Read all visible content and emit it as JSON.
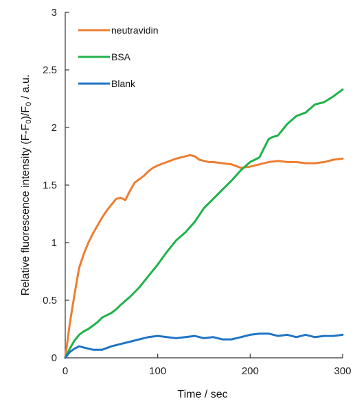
{
  "chart_data": {
    "type": "line",
    "title": "",
    "xlabel": "Time / sec",
    "ylabel_parts": {
      "main": "Relative fluorescence intensity (F-F",
      "sub1": "0",
      "mid": ")/F",
      "sub2": "0",
      "end": " / a.u."
    },
    "xlim": [
      0,
      300
    ],
    "ylim": [
      0,
      3
    ],
    "x_ticks": [
      0,
      100,
      200,
      300
    ],
    "y_ticks": [
      0,
      0.5,
      1,
      1.5,
      2,
      2.5,
      3
    ],
    "x_tick_labels": [
      "0",
      "100",
      "200",
      "300"
    ],
    "y_tick_labels": [
      "0",
      "0.5",
      "1",
      "1.5",
      "2",
      "2.5",
      "3"
    ],
    "grid": false,
    "legend_position": "top-left",
    "series": [
      {
        "name": "neutravidin",
        "color": "#EE7D31",
        "x": [
          0,
          5,
          10,
          15,
          20,
          25,
          30,
          35,
          40,
          45,
          50,
          55,
          60,
          65,
          70,
          75,
          80,
          85,
          90,
          95,
          100,
          110,
          120,
          130,
          135,
          140,
          145,
          150,
          155,
          160,
          170,
          180,
          190,
          200,
          210,
          220,
          230,
          240,
          250,
          260,
          270,
          280,
          290,
          300
        ],
        "y": [
          0,
          0.3,
          0.55,
          0.78,
          0.9,
          1.0,
          1.08,
          1.15,
          1.22,
          1.28,
          1.33,
          1.38,
          1.39,
          1.37,
          1.45,
          1.52,
          1.55,
          1.58,
          1.62,
          1.65,
          1.67,
          1.7,
          1.73,
          1.75,
          1.76,
          1.75,
          1.72,
          1.71,
          1.7,
          1.7,
          1.69,
          1.68,
          1.65,
          1.66,
          1.68,
          1.7,
          1.71,
          1.7,
          1.7,
          1.69,
          1.69,
          1.7,
          1.72,
          1.73
        ]
      },
      {
        "name": "BSA",
        "color": "#1FB24A",
        "x": [
          0,
          5,
          10,
          15,
          20,
          25,
          30,
          35,
          40,
          45,
          50,
          55,
          60,
          70,
          80,
          90,
          100,
          110,
          120,
          130,
          140,
          150,
          160,
          170,
          180,
          190,
          200,
          205,
          210,
          215,
          220,
          225,
          230,
          240,
          250,
          260,
          270,
          280,
          290,
          300
        ],
        "y": [
          0,
          0.08,
          0.15,
          0.2,
          0.23,
          0.25,
          0.28,
          0.31,
          0.35,
          0.37,
          0.39,
          0.42,
          0.46,
          0.53,
          0.61,
          0.71,
          0.81,
          0.92,
          1.02,
          1.09,
          1.18,
          1.3,
          1.38,
          1.46,
          1.54,
          1.63,
          1.7,
          1.72,
          1.74,
          1.82,
          1.9,
          1.92,
          1.93,
          2.03,
          2.1,
          2.13,
          2.2,
          2.22,
          2.27,
          2.33
        ]
      },
      {
        "name": "Blank",
        "color": "#1F74C4",
        "x": [
          0,
          5,
          10,
          15,
          20,
          30,
          40,
          50,
          60,
          70,
          80,
          90,
          100,
          110,
          120,
          130,
          140,
          150,
          160,
          170,
          180,
          190,
          200,
          210,
          220,
          230,
          240,
          250,
          260,
          270,
          280,
          290,
          300
        ],
        "y": [
          0,
          0.05,
          0.08,
          0.1,
          0.09,
          0.07,
          0.07,
          0.1,
          0.12,
          0.14,
          0.16,
          0.18,
          0.19,
          0.18,
          0.17,
          0.18,
          0.19,
          0.17,
          0.18,
          0.16,
          0.16,
          0.18,
          0.2,
          0.21,
          0.21,
          0.19,
          0.2,
          0.18,
          0.2,
          0.18,
          0.19,
          0.19,
          0.2
        ]
      }
    ]
  }
}
